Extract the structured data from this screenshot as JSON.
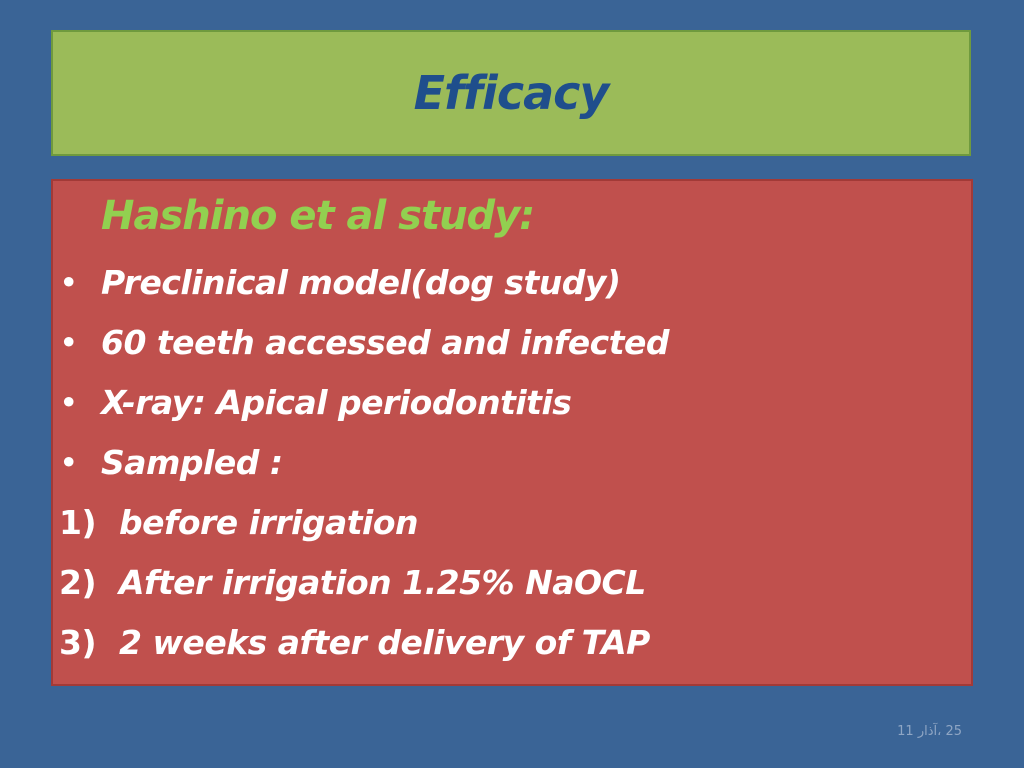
{
  "slide": {
    "title": "Efficacy",
    "study_heading": "Hashino et al study:",
    "bullets": [
      "Preclinical model(dog study)",
      "60 teeth accessed and infected",
      "X-ray: Apical periodontitis",
      "Sampled :"
    ],
    "steps": [
      {
        "number": "1)",
        "text": "before irrigation"
      },
      {
        "number": "2)",
        "text": "After irrigation 1.25% NaOCL"
      },
      {
        "number": "3)",
        "text": "2 weeks after delivery of TAP"
      }
    ],
    "footer_date": "25 ،آذار 11"
  },
  "icons": {
    "bullet_glyph": "•"
  },
  "colors": {
    "background": "#3a6496",
    "title_fill": "#9bbb59",
    "title_text": "#1f4e8c",
    "content_fill": "#c0504d",
    "heading_text": "#92d050",
    "body_text": "#ffffff"
  }
}
